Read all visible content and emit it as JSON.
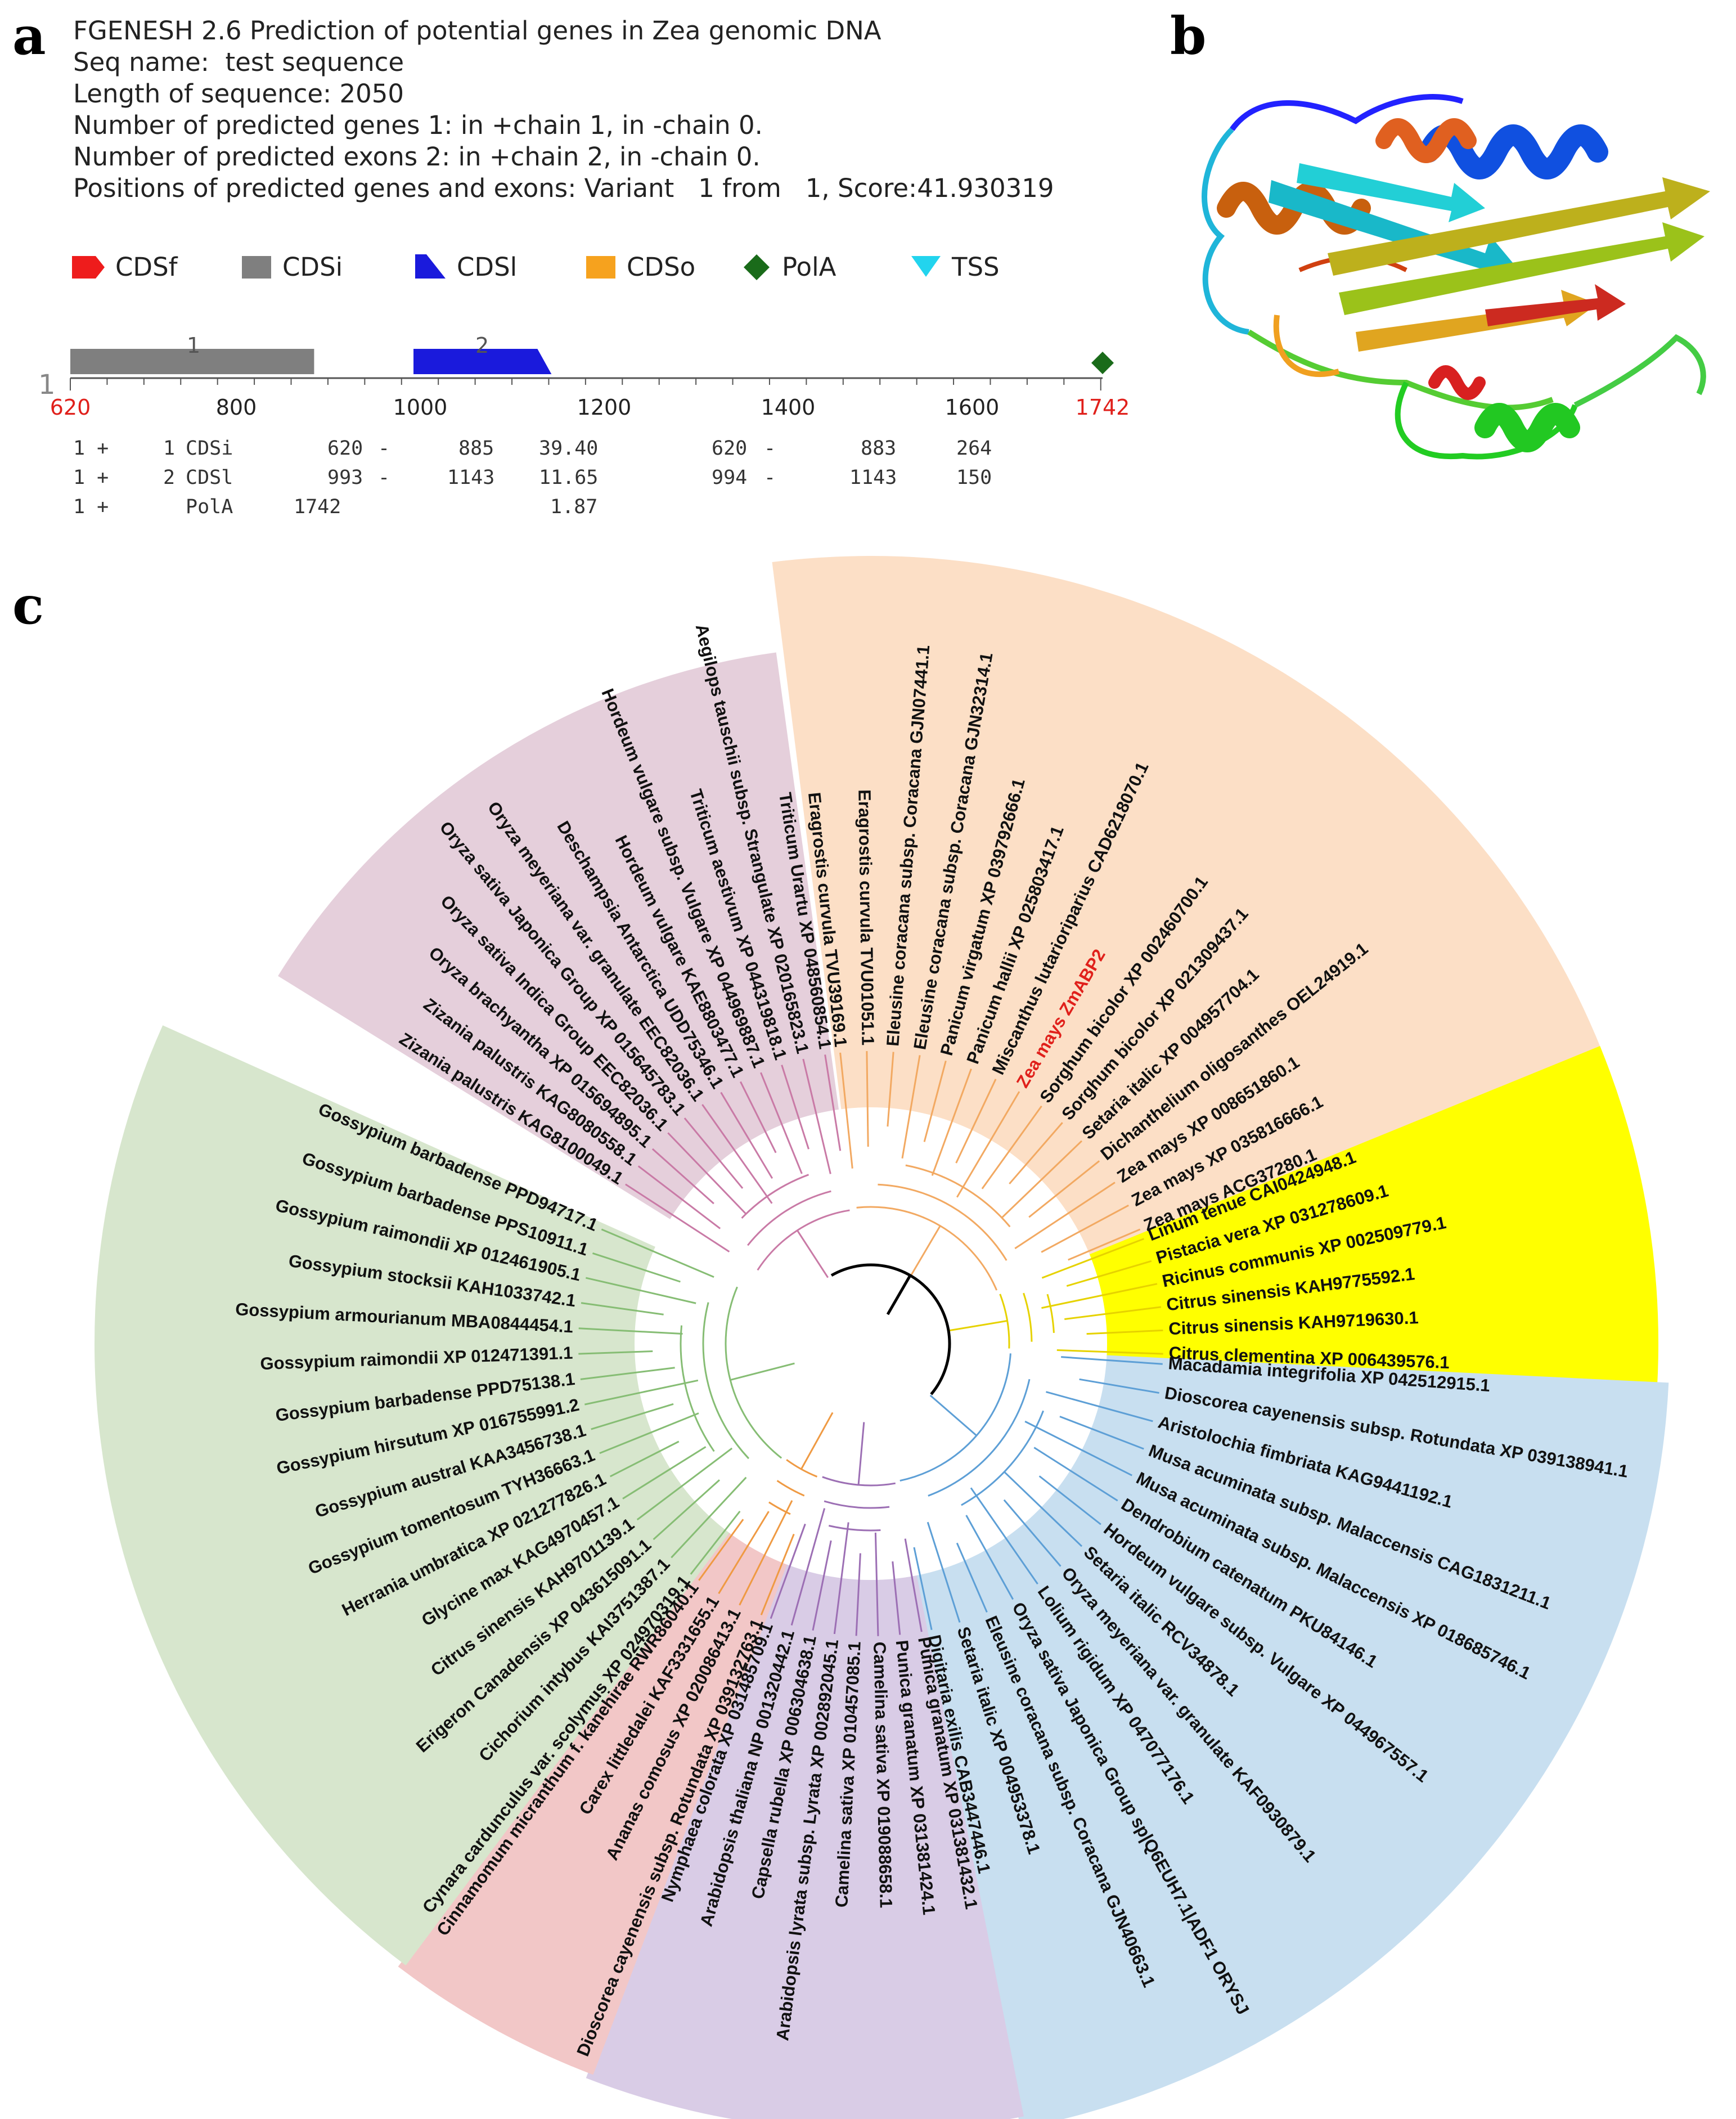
{
  "panel_labels": {
    "a": "a",
    "b": "b",
    "c": "c"
  },
  "fgenesh": {
    "lines": [
      "FGENESH 2.6 Prediction of potential genes in Zea genomic DNA",
      "Seq name:  test sequence",
      "Length of sequence: 2050",
      "Number of predicted genes 1: in +chain 1, in -chain 0.",
      "Number of predicted exons 2: in +chain 2, in -chain 0.",
      "Positions of predicted genes and exons: Variant   1 from   1, Score:41.930319"
    ],
    "legend": [
      {
        "key": "cdsf",
        "label": "CDSf",
        "color": "#ee1c1c"
      },
      {
        "key": "cdsi",
        "label": "CDSi",
        "color": "#7f7f7f"
      },
      {
        "key": "cdsl",
        "label": "CDSl",
        "color": "#1a1adc"
      },
      {
        "key": "cdso",
        "label": "CDSo",
        "color": "#f6a21e"
      },
      {
        "key": "polya",
        "label": "PolA",
        "color": "#1a6b1a"
      },
      {
        "key": "tss",
        "label": "TSS",
        "color": "#22d4ee"
      }
    ],
    "track": {
      "strand_label": "1",
      "exon_labels": [
        "1",
        "2"
      ],
      "features": [
        {
          "type": "CDSi",
          "start": 620,
          "end": 885
        },
        {
          "type": "CDSl",
          "start": 993,
          "end": 1143
        },
        {
          "type": "PolA",
          "start": 1742,
          "end": 1742
        }
      ],
      "axis": {
        "start": 620,
        "end": 1742,
        "ticks": [
          "800",
          "1000",
          "1200",
          "1400",
          "1600"
        ],
        "start_label": "620",
        "end_label": "1742"
      }
    },
    "table": [
      [
        "1 +",
        "1",
        "CDSi",
        "620",
        "-",
        "885",
        "39.40",
        "620",
        "-",
        "883",
        "264"
      ],
      [
        "1 +",
        "2",
        "CDSl",
        "993",
        "-",
        "1143",
        "11.65",
        "994",
        "-",
        "1143",
        "150"
      ],
      [
        "1 +",
        "",
        "PolA",
        "1742",
        "",
        "",
        "1.87",
        "",
        "",
        "",
        ""
      ]
    ]
  },
  "tree": {
    "clades": [
      {
        "name": "pink",
        "color": "#e5cfdb",
        "branch": "#c97aa6",
        "leaves": [
          "Zizania palustris KAG8100049.1",
          "Zizania palustris KAG8080558.1",
          "Oryza brachyantha XP 015694895.1",
          "Oryza sativa Indica Group EEC82036.1",
          "Oryza sativa Japonica Group XP 015645783.1",
          "Oryza meyeriana var. granulate EEC82036.1",
          "Deschampsia Antarctica UDD75346.1",
          "Hordeum vulgare KAE8803477.1",
          "Hordeum vulgare subsp. Vulgare XP 044969887.1",
          "Triticum aestivum XP 044319818.1",
          "Aegilops tauschii subsp. Strangulate XP 020165823.1",
          "Triticum Urartu XP 048560854.1"
        ]
      },
      {
        "name": "peach",
        "color": "#fcdfc6",
        "branch": "#f2a962",
        "leaves": [
          "Eragrostis curvula TVU39169.1",
          "Eragrostis curvula TVU01051.1",
          "Eleusine coracana subsp. Coracana GJN07441.1",
          "Eleusine coracana subsp. Coracana GJN32314.1",
          "Panicum virgatum XP 039792666.1",
          "Panicum hallii XP 025803417.1",
          "Miscanthus lutarioriparius CAD6218070.1",
          "Zea mays ZmABP2",
          "Sorghum bicolor XP 002460700.1",
          "Sorghum bicolor XP 021309437.1",
          "Setaria italic XP 004957704.1",
          "Dichanthelium oligosanthes OEL24919.1",
          "Zea mays XP 008651860.1",
          "Zea mays XP 035816666.1",
          "Zea mays ACG37280.1"
        ]
      },
      {
        "name": "yellow",
        "color": "#ffff00",
        "branch": "#e6d200",
        "leaves": [
          "Linum tenue CAI0424948.1",
          "Pistacia vera XP 031278609.1",
          "Ricinus communis XP 002509779.1",
          "Citrus sinensis KAH9775592.1",
          "Citrus sinensis KAH9719630.1",
          "Citrus clementina XP 006439576.1"
        ]
      },
      {
        "name": "blue",
        "color": "#c8dff0",
        "branch": "#5d9fd6",
        "leaves": [
          "Macadamia integrifolia XP 042512915.1",
          "Dioscorea cayenensis subsp. Rotundata XP 039138941.1",
          "Aristolochia fimbriata KAG9441192.1",
          "Musa acuminata subsp. Malaccensis CAG1831211.1",
          "Musa acuminata subsp. Malaccensis XP 018685746.1",
          "Dendrobium catenatum PKU84146.1",
          "Hordeum vulgare subsp. Vulgare XP 044967557.1",
          "Setaria italic RCV34878.1",
          "Oryza meyeriana var. granulate KAF0930879.1",
          "Lolium rigidum XP 047077176.1",
          "Oryza sativa Japonica Group sp|Q6EUH7.1|ADF1 ORYSJ",
          "Eleusine coracana subsp. Coracana GJN40663.1",
          "Setaria italic XP 004953378.1",
          "Digitaria exilis CAB3447446.1"
        ]
      },
      {
        "name": "lilac",
        "color": "#d9cce6",
        "branch": "#9c6fb4",
        "leaves": [
          "Punica granatum XP 031381432.1",
          "Punica granatum XP 031381424.1",
          "Camelina sativa XP 019088658.1",
          "Camelina sativa XP 010457085.1",
          "Arabidopsis lyrata subsp. Lyrata XP 002892045.1",
          "Capsella rubella XP 006304638.1",
          "Arabidopsis thaliana NP 001320442.1",
          "Nymphaea colorata XP 031485709.1"
        ]
      },
      {
        "name": "salmon",
        "color": "#f2c7c7",
        "branch": "#ef9a43",
        "leaves": [
          "Dioscorea cayenensis subsp. Rotundata XP 039132763.1",
          "Ananas comosus XP 020086413.1",
          "Carex littledalei KAF3331655.1",
          "Cinnamomum micranthum f. kanehirae RWR86040.1"
        ]
      },
      {
        "name": "green",
        "color": "#d7e6cd",
        "branch": "#86bd74",
        "leaves": [
          "Cynara cardunculus var. scolymus XP 024970319.1",
          "Cichorium intybus KAI3751387.1",
          "Erigeron Canadensis XP 043615091.1",
          "Citrus sinensis KAH9701139.1",
          "Glycine max KAG4970457.1",
          "Herrania umbratica XP 021277826.1",
          "Gossypium tomentosum TYH36663.1",
          "Gossypium austral KAA3456738.1",
          "Gossypium hirsutum XP 016755991.2",
          "Gossypium barbadense PPD75138.1",
          "Gossypium raimondii XP 012471391.1",
          "Gossypium armourianum MBA0844454.1",
          "Gossypium stocksii KAH1033742.1",
          "Gossypium raimondii XP 012461905.1",
          "Gossypium barbadense PPS10911.1",
          "Gossypium barbadense PPD94717.1"
        ]
      }
    ],
    "highlight": {
      "label": "Zea mays ZmABP2",
      "color": "#e0201b"
    }
  }
}
